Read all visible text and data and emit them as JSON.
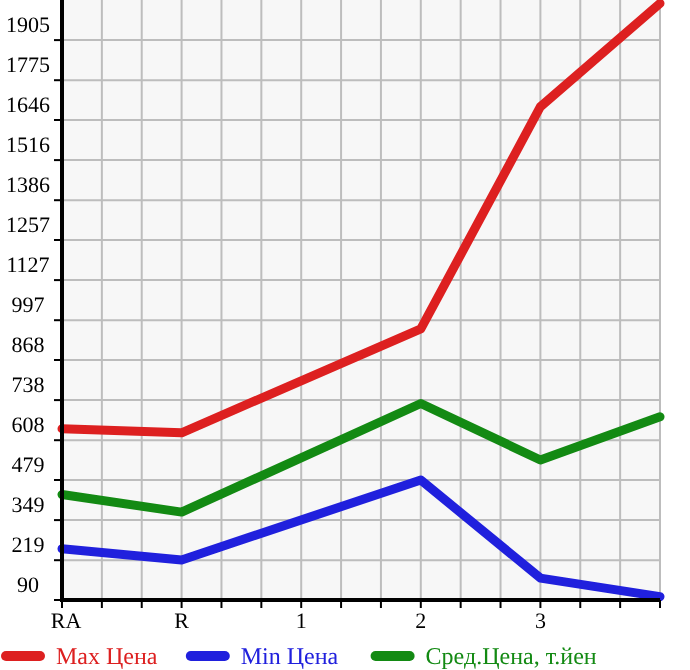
{
  "chart_data": {
    "type": "line",
    "categories": [
      "RA",
      "R",
      "1",
      "2",
      "3",
      null
    ],
    "series": [
      {
        "name": "Max Цена",
        "color": "#dd2020",
        "values": [
          645,
          632,
          null,
          969,
          1689,
          2024
        ]
      },
      {
        "name": "Min Цена",
        "color": "#2020dd",
        "values": [
          256,
          220,
          null,
          479,
          161,
          101
        ]
      },
      {
        "name": "Сред.Цена, т.йен",
        "color": "#138a13",
        "values": [
          432,
          375,
          null,
          727,
          544,
          684
        ]
      }
    ],
    "ylim": [
      90,
      2035
    ],
    "yticks": [
      90,
      219,
      349,
      479,
      608,
      738,
      868,
      997,
      1127,
      1257,
      1386,
      1516,
      1646,
      1775,
      1905
    ],
    "grid": true,
    "legend": "bottom",
    "marker": "none",
    "line_style": "solid"
  }
}
